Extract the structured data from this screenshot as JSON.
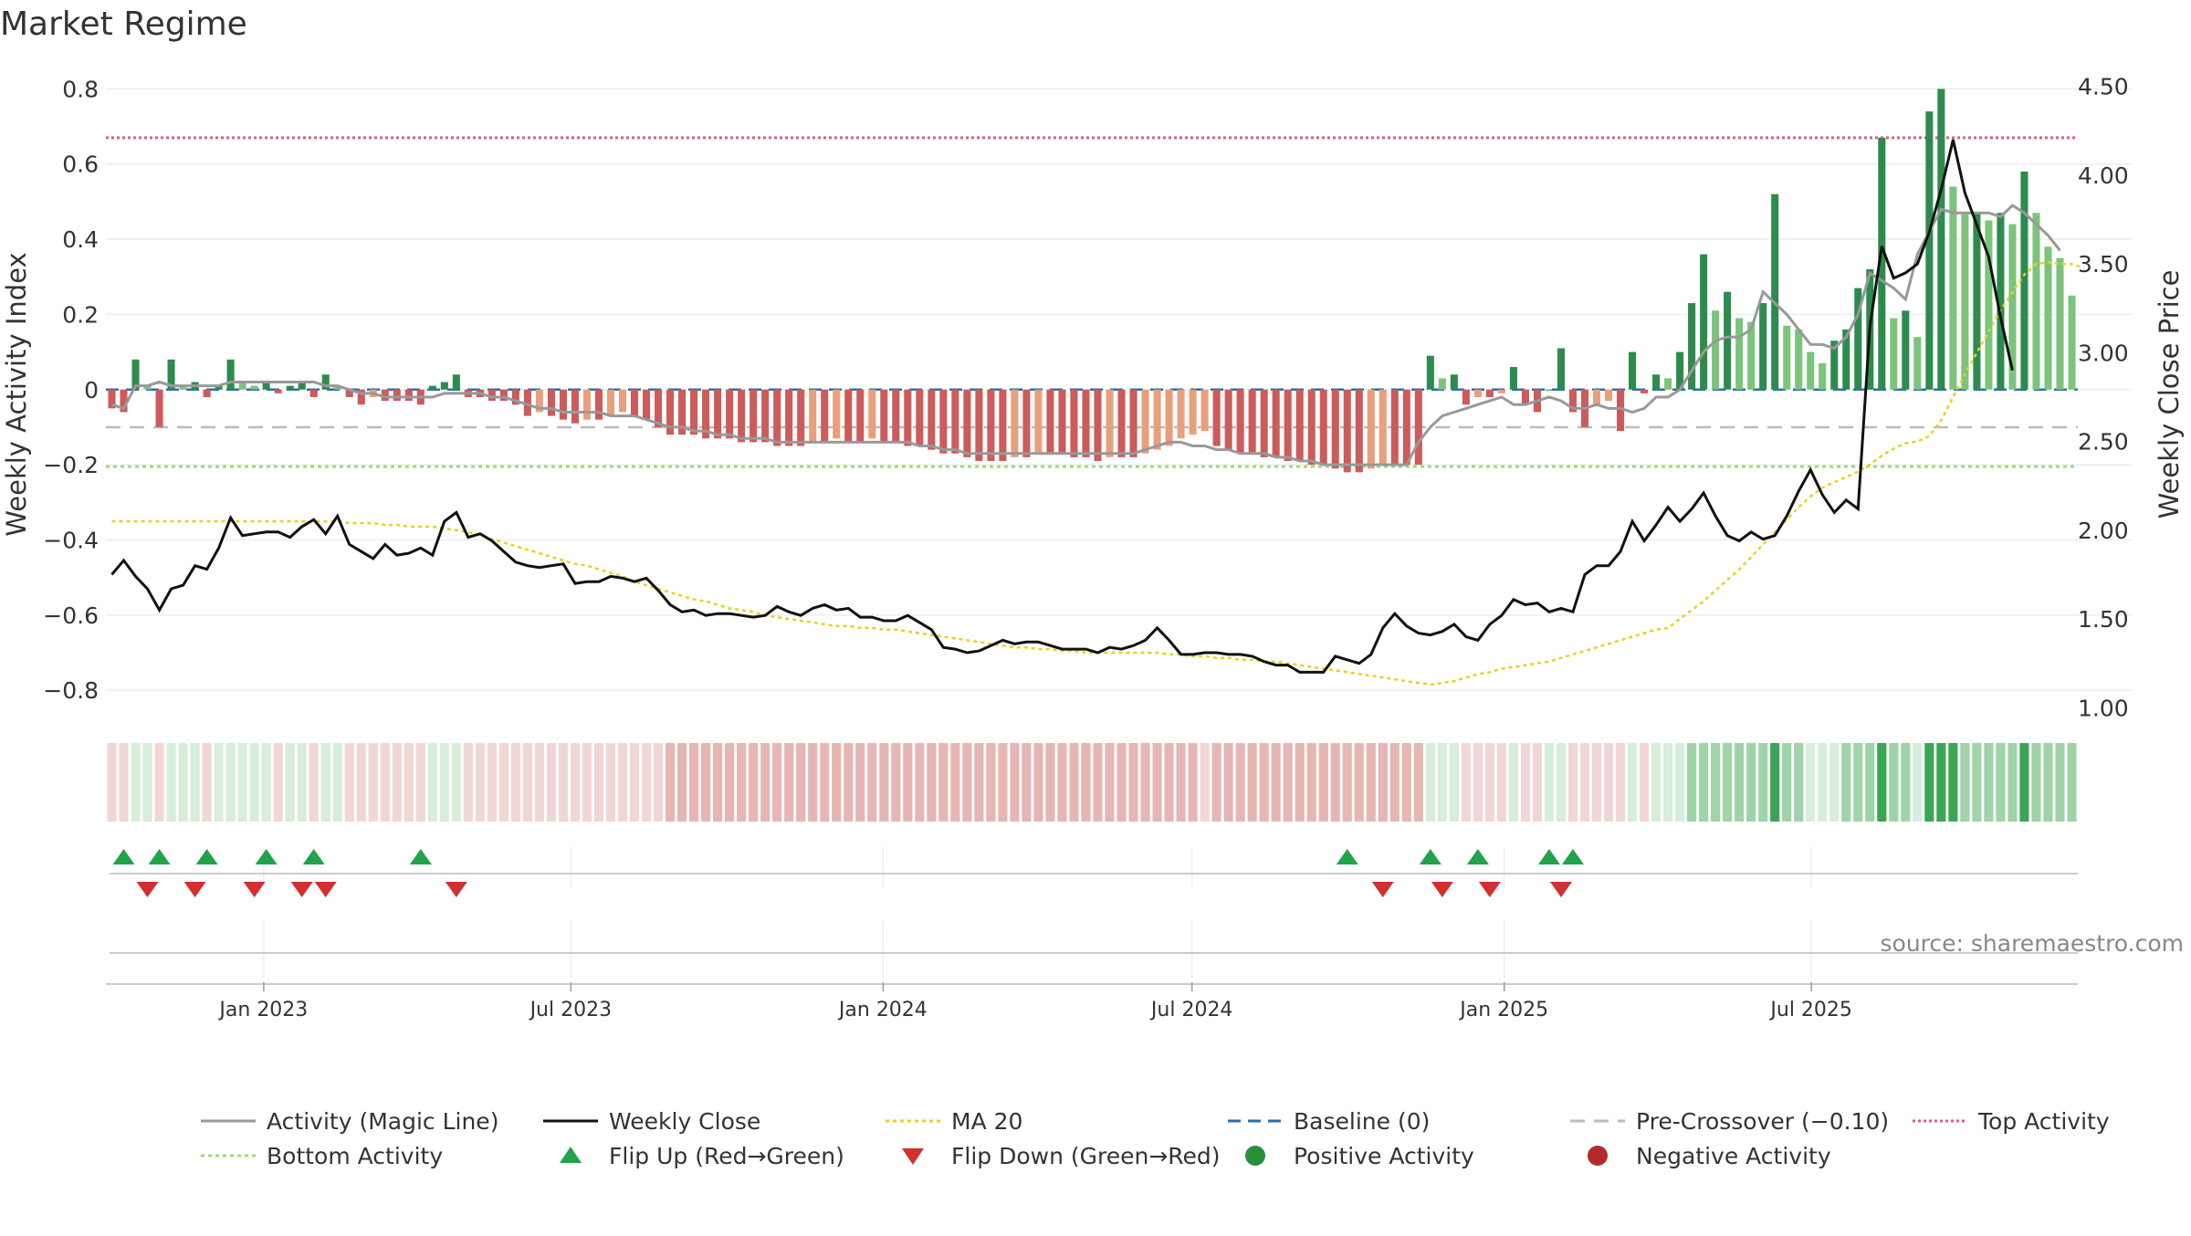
{
  "title": "Market Regime",
  "source_note": "source: sharemaestro.com",
  "chart_data": {
    "type": "bar",
    "title": "Market Regime",
    "ylabel_left": "Weekly Activity Index",
    "ylabel_right": "Weekly Close Price",
    "ylim_left": [
      -0.87,
      0.83
    ],
    "ylim_right": [
      0.95,
      4.55
    ],
    "yticks_left": [
      0.8,
      0.6,
      0.4,
      0.2,
      0,
      -0.2,
      -0.4,
      -0.6,
      -0.8
    ],
    "ytick_labels_left": [
      "0.8",
      "0.6",
      "0.4",
      "0.2",
      "0",
      "−0.2",
      "−0.4",
      "−0.6",
      "−0.8"
    ],
    "yticks_right": [
      4.5,
      4.0,
      3.5,
      3.0,
      2.5,
      2.0,
      1.5,
      1.0
    ],
    "ytick_labels_right": [
      "4.50",
      "4.00",
      "3.50",
      "3.00",
      "2.50",
      "2.00",
      "1.50",
      "1.00"
    ],
    "x_start": "2022-09-30",
    "x_ticks": [
      {
        "date": "2023-01-01",
        "label": "Jan 2023"
      },
      {
        "date": "2023-07-01",
        "label": "Jul 2023"
      },
      {
        "date": "2024-01-01",
        "label": "Jan 2024"
      },
      {
        "date": "2024-07-01",
        "label": "Jul 2024"
      },
      {
        "date": "2025-01-01",
        "label": "Jan 2025"
      },
      {
        "date": "2025-07-01",
        "label": "Jul 2025"
      }
    ],
    "reference_lines": {
      "top_activity": 0.67,
      "pre_crossover": -0.1,
      "bottom_activity": -0.205,
      "baseline": 0
    },
    "activity_bars": [
      -0.05,
      -0.06,
      0.08,
      0.01,
      -0.1,
      0.08,
      0.01,
      0.02,
      -0.02,
      0.01,
      0.08,
      0.02,
      0.01,
      0.02,
      -0.01,
      0.01,
      0.02,
      -0.02,
      0.04,
      0.01,
      -0.02,
      -0.04,
      -0.02,
      -0.03,
      -0.03,
      -0.03,
      -0.04,
      0.01,
      0.02,
      0.04,
      -0.02,
      -0.02,
      -0.03,
      -0.03,
      -0.04,
      -0.07,
      -0.06,
      -0.07,
      -0.08,
      -0.09,
      -0.08,
      -0.08,
      -0.07,
      -0.06,
      -0.07,
      -0.08,
      -0.1,
      -0.12,
      -0.12,
      -0.12,
      -0.13,
      -0.13,
      -0.13,
      -0.14,
      -0.14,
      -0.14,
      -0.15,
      -0.15,
      -0.15,
      -0.14,
      -0.14,
      -0.13,
      -0.14,
      -0.14,
      -0.13,
      -0.14,
      -0.14,
      -0.15,
      -0.15,
      -0.16,
      -0.17,
      -0.17,
      -0.18,
      -0.19,
      -0.19,
      -0.19,
      -0.18,
      -0.18,
      -0.17,
      -0.17,
      -0.17,
      -0.18,
      -0.18,
      -0.19,
      -0.18,
      -0.18,
      -0.18,
      -0.17,
      -0.16,
      -0.15,
      -0.13,
      -0.12,
      -0.11,
      -0.15,
      -0.16,
      -0.17,
      -0.17,
      -0.18,
      -0.18,
      -0.19,
      -0.19,
      -0.2,
      -0.2,
      -0.21,
      -0.22,
      -0.22,
      -0.21,
      -0.2,
      -0.2,
      -0.2,
      -0.2,
      0.09,
      0.03,
      0.04,
      -0.04,
      -0.02,
      -0.02,
      -0.01,
      0.06,
      -0.04,
      -0.06,
      0.0,
      0.11,
      -0.06,
      -0.1,
      -0.04,
      -0.03,
      -0.11,
      0.1,
      -0.01,
      0.04,
      0.03,
      0.1,
      0.23,
      0.36,
      0.21,
      0.26,
      0.19,
      0.18,
      0.23,
      0.52,
      0.17,
      0.16,
      0.1,
      0.07,
      0.13,
      0.16,
      0.27,
      0.32,
      0.67,
      0.19,
      0.21,
      0.14,
      0.74,
      0.8,
      0.54,
      0.47,
      0.47,
      0.45,
      0.47,
      0.44,
      0.58,
      0.47,
      0.38,
      0.35,
      0.25
    ],
    "magic_line": [
      -0.04,
      -0.05,
      0.01,
      0.01,
      0.02,
      0.01,
      0.01,
      0.01,
      0.01,
      0.01,
      0.02,
      0.02,
      0.02,
      0.02,
      0.02,
      0.02,
      0.02,
      0.02,
      0.01,
      0.01,
      0.0,
      -0.01,
      -0.01,
      -0.02,
      -0.02,
      -0.02,
      -0.02,
      -0.02,
      -0.01,
      -0.01,
      -0.01,
      -0.01,
      -0.02,
      -0.02,
      -0.03,
      -0.04,
      -0.05,
      -0.05,
      -0.06,
      -0.06,
      -0.06,
      -0.06,
      -0.07,
      -0.07,
      -0.07,
      -0.08,
      -0.09,
      -0.1,
      -0.1,
      -0.11,
      -0.11,
      -0.12,
      -0.12,
      -0.13,
      -0.13,
      -0.13,
      -0.14,
      -0.14,
      -0.14,
      -0.14,
      -0.14,
      -0.14,
      -0.14,
      -0.14,
      -0.14,
      -0.14,
      -0.14,
      -0.14,
      -0.15,
      -0.15,
      -0.16,
      -0.16,
      -0.17,
      -0.17,
      -0.17,
      -0.17,
      -0.17,
      -0.17,
      -0.17,
      -0.17,
      -0.17,
      -0.17,
      -0.17,
      -0.17,
      -0.17,
      -0.17,
      -0.17,
      -0.16,
      -0.15,
      -0.14,
      -0.14,
      -0.15,
      -0.15,
      -0.16,
      -0.16,
      -0.17,
      -0.17,
      -0.17,
      -0.18,
      -0.18,
      -0.19,
      -0.19,
      -0.2,
      -0.2,
      -0.2,
      -0.2,
      -0.2,
      -0.2,
      -0.2,
      -0.2,
      -0.14,
      -0.1,
      -0.07,
      -0.06,
      -0.05,
      -0.04,
      -0.03,
      -0.02,
      -0.04,
      -0.04,
      -0.03,
      -0.02,
      -0.03,
      -0.05,
      -0.05,
      -0.04,
      -0.05,
      -0.05,
      -0.06,
      -0.05,
      -0.02,
      -0.02,
      0.0,
      0.05,
      0.1,
      0.13,
      0.14,
      0.14,
      0.16,
      0.26,
      0.23,
      0.2,
      0.16,
      0.12,
      0.12,
      0.11,
      0.14,
      0.2,
      0.31,
      0.29,
      0.27,
      0.24,
      0.36,
      0.42,
      0.48,
      0.47,
      0.47,
      0.47,
      0.47,
      0.46,
      0.49,
      0.47,
      0.44,
      0.41,
      0.37
    ],
    "weekly_close": [
      1.75,
      1.83,
      1.74,
      1.67,
      1.55,
      1.67,
      1.69,
      1.8,
      1.78,
      1.9,
      2.07,
      1.97,
      1.98,
      1.99,
      1.99,
      1.96,
      2.02,
      2.06,
      1.98,
      2.08,
      1.92,
      1.88,
      1.84,
      1.92,
      1.86,
      1.87,
      1.9,
      1.86,
      2.05,
      2.1,
      1.96,
      1.98,
      1.94,
      1.88,
      1.82,
      1.8,
      1.79,
      1.8,
      1.81,
      1.7,
      1.71,
      1.71,
      1.74,
      1.73,
      1.71,
      1.73,
      1.66,
      1.58,
      1.54,
      1.55,
      1.52,
      1.53,
      1.53,
      1.52,
      1.51,
      1.52,
      1.57,
      1.54,
      1.52,
      1.56,
      1.58,
      1.55,
      1.56,
      1.51,
      1.51,
      1.49,
      1.49,
      1.52,
      1.48,
      1.44,
      1.34,
      1.33,
      1.31,
      1.32,
      1.35,
      1.38,
      1.36,
      1.37,
      1.37,
      1.35,
      1.33,
      1.33,
      1.33,
      1.31,
      1.34,
      1.33,
      1.35,
      1.38,
      1.45,
      1.38,
      1.3,
      1.3,
      1.31,
      1.31,
      1.3,
      1.3,
      1.29,
      1.26,
      1.24,
      1.24,
      1.2,
      1.2,
      1.2,
      1.29,
      1.27,
      1.25,
      1.3,
      1.45,
      1.53,
      1.46,
      1.42,
      1.41,
      1.43,
      1.47,
      1.4,
      1.38,
      1.47,
      1.52,
      1.61,
      1.58,
      1.59,
      1.54,
      1.56,
      1.54,
      1.75,
      1.8,
      1.8,
      1.88,
      2.05,
      1.94,
      2.03,
      2.13,
      2.05,
      2.12,
      2.21,
      2.08,
      1.97,
      1.94,
      1.99,
      1.95,
      1.97,
      2.08,
      2.22,
      2.34,
      2.2,
      2.1,
      2.17,
      2.12,
      3.15,
      3.6,
      3.42,
      3.45,
      3.5,
      3.68,
      3.92,
      4.2,
      3.9,
      3.72,
      3.54,
      3.2,
      2.9
    ],
    "ma20": [
      2.05,
      2.05,
      2.05,
      2.05,
      2.05,
      2.05,
      2.05,
      2.05,
      2.05,
      2.05,
      2.05,
      2.05,
      2.05,
      2.05,
      2.05,
      2.05,
      2.05,
      2.05,
      2.05,
      2.05,
      2.04,
      2.04,
      2.04,
      2.03,
      2.03,
      2.02,
      2.02,
      2.02,
      2.01,
      2.0,
      1.99,
      1.97,
      1.95,
      1.93,
      1.91,
      1.89,
      1.87,
      1.85,
      1.83,
      1.81,
      1.8,
      1.78,
      1.76,
      1.74,
      1.71,
      1.69,
      1.67,
      1.65,
      1.63,
      1.61,
      1.6,
      1.58,
      1.56,
      1.55,
      1.54,
      1.52,
      1.51,
      1.5,
      1.49,
      1.48,
      1.47,
      1.46,
      1.46,
      1.45,
      1.45,
      1.44,
      1.44,
      1.43,
      1.42,
      1.41,
      1.4,
      1.39,
      1.38,
      1.37,
      1.36,
      1.35,
      1.34,
      1.34,
      1.33,
      1.33,
      1.32,
      1.32,
      1.31,
      1.31,
      1.31,
      1.31,
      1.31,
      1.31,
      1.31,
      1.3,
      1.3,
      1.29,
      1.29,
      1.28,
      1.28,
      1.27,
      1.27,
      1.26,
      1.26,
      1.25,
      1.24,
      1.23,
      1.22,
      1.21,
      1.2,
      1.19,
      1.18,
      1.17,
      1.16,
      1.15,
      1.14,
      1.13,
      1.14,
      1.15,
      1.17,
      1.19,
      1.2,
      1.22,
      1.23,
      1.24,
      1.25,
      1.26,
      1.28,
      1.3,
      1.32,
      1.34,
      1.36,
      1.38,
      1.4,
      1.42,
      1.44,
      1.45,
      1.5,
      1.55,
      1.6,
      1.66,
      1.72,
      1.78,
      1.85,
      1.92,
      1.99,
      2.06,
      2.13,
      2.19,
      2.24,
      2.27,
      2.3,
      2.33,
      2.37,
      2.42,
      2.46,
      2.49,
      2.5,
      2.53,
      2.62,
      2.75,
      2.88,
      3.0,
      3.12,
      3.24,
      3.34,
      3.44,
      3.5,
      3.51,
      3.5,
      3.5,
      3.48
    ],
    "flip_up_indices": [
      1,
      4,
      8,
      13,
      17,
      26,
      104,
      111,
      115,
      121,
      123
    ],
    "flip_down_indices": [
      3,
      7,
      12,
      16,
      18,
      29,
      107,
      112,
      116,
      122
    ],
    "legend": [
      {
        "label": "Activity (Magic Line)",
        "kind": "line",
        "color": "#999999",
        "dash": ""
      },
      {
        "label": "Weekly Close",
        "kind": "line",
        "color": "#111111",
        "dash": ""
      },
      {
        "label": "MA 20",
        "kind": "line",
        "color": "#e8d21b",
        "dash": "4 4"
      },
      {
        "label": "Baseline (0)",
        "kind": "line",
        "color": "#2b6ea8",
        "dash": "14 8"
      },
      {
        "label": "Pre-Crossover (−0.10)",
        "kind": "line",
        "color": "#bbbbbb",
        "dash": "16 10"
      },
      {
        "label": "Top Activity",
        "kind": "line",
        "color": "#d9607a",
        "dash": "3 3"
      },
      {
        "label": "Bottom Activity",
        "kind": "line",
        "color": "#99dd77",
        "dash": "4 4"
      },
      {
        "label": "Flip Up (Red→Green)",
        "kind": "triangle-up",
        "color": "#22a34a",
        "dash": ""
      },
      {
        "label": "Flip Down (Green→Red)",
        "kind": "triangle-down",
        "color": "#d32f2f",
        "dash": ""
      },
      {
        "label": "Positive Activity",
        "kind": "dot",
        "color": "#2a8f3c",
        "dash": ""
      },
      {
        "label": "Negative Activity",
        "kind": "dot",
        "color": "#b22a2a",
        "dash": ""
      }
    ]
  },
  "colors": {
    "pos_strong": "#2e8b4e",
    "pos_weak": "#7cc47c",
    "neg_strong": "#cc5b5b",
    "neg_weak": "#e8a07c",
    "strip_pos_light": "#d6eedb",
    "strip_pos_mid": "#9fd3a8",
    "strip_pos_dark": "#3aa655",
    "strip_neg_light": "#f0d7d5",
    "strip_neg_dark": "#e6b6b2"
  }
}
